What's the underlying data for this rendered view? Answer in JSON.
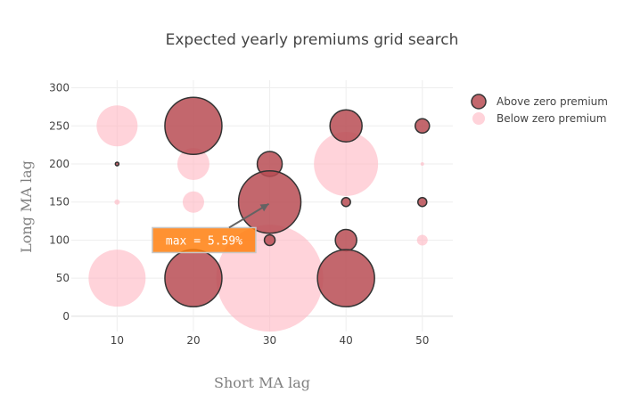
{
  "chart_data": {
    "type": "scatter",
    "title": "Expected yearly premiums grid search",
    "xlabel": "Short MA lag",
    "ylabel": "Long MA lag",
    "xlim": [
      4,
      54
    ],
    "ylim": [
      -20,
      310
    ],
    "x_ticks": [
      10,
      20,
      30,
      40,
      50
    ],
    "y_ticks": [
      0,
      50,
      100,
      150,
      200,
      250,
      300
    ],
    "grid": true,
    "legend_position": "top-right",
    "series": [
      {
        "name": "Above zero premium",
        "color": "#b84c54",
        "stroke": "#333333",
        "opacity": 0.85,
        "points": [
          {
            "x": 20,
            "y": 250,
            "size": 3.2
          },
          {
            "x": 40,
            "y": 250,
            "size": 1.8
          },
          {
            "x": 50,
            "y": 250,
            "size": 0.8
          },
          {
            "x": 30,
            "y": 200,
            "size": 1.4
          },
          {
            "x": 10,
            "y": 200,
            "size": 0.2
          },
          {
            "x": 30,
            "y": 150,
            "size": 3.5
          },
          {
            "x": 40,
            "y": 150,
            "size": 0.5
          },
          {
            "x": 50,
            "y": 150,
            "size": 0.5
          },
          {
            "x": 30,
            "y": 100,
            "size": 0.6
          },
          {
            "x": 40,
            "y": 100,
            "size": 1.2
          },
          {
            "x": 20,
            "y": 50,
            "size": 3.2
          },
          {
            "x": 40,
            "y": 50,
            "size": 3.2
          }
        ]
      },
      {
        "name": "Below zero premium",
        "color": "#ffb6c1",
        "opacity": 0.6,
        "points": [
          {
            "x": 10,
            "y": 250,
            "size": 2.3
          },
          {
            "x": 20,
            "y": 200,
            "size": 1.8
          },
          {
            "x": 40,
            "y": 200,
            "size": 3.6
          },
          {
            "x": 50,
            "y": 200,
            "size": 0.2
          },
          {
            "x": 10,
            "y": 150,
            "size": 0.3
          },
          {
            "x": 20,
            "y": 150,
            "size": 1.2
          },
          {
            "x": 50,
            "y": 100,
            "size": 0.6
          },
          {
            "x": 10,
            "y": 50,
            "size": 3.2
          },
          {
            "x": 30,
            "y": 50,
            "size": 6.0
          }
        ]
      }
    ],
    "annotation": {
      "text": "max = 5.59%",
      "point_x": 30,
      "point_y": 150,
      "label_x": 20,
      "label_y": 100,
      "bg_color": "#ff7f0e",
      "border_color": "#c7c7c7",
      "arrow_color": "#636363"
    }
  }
}
